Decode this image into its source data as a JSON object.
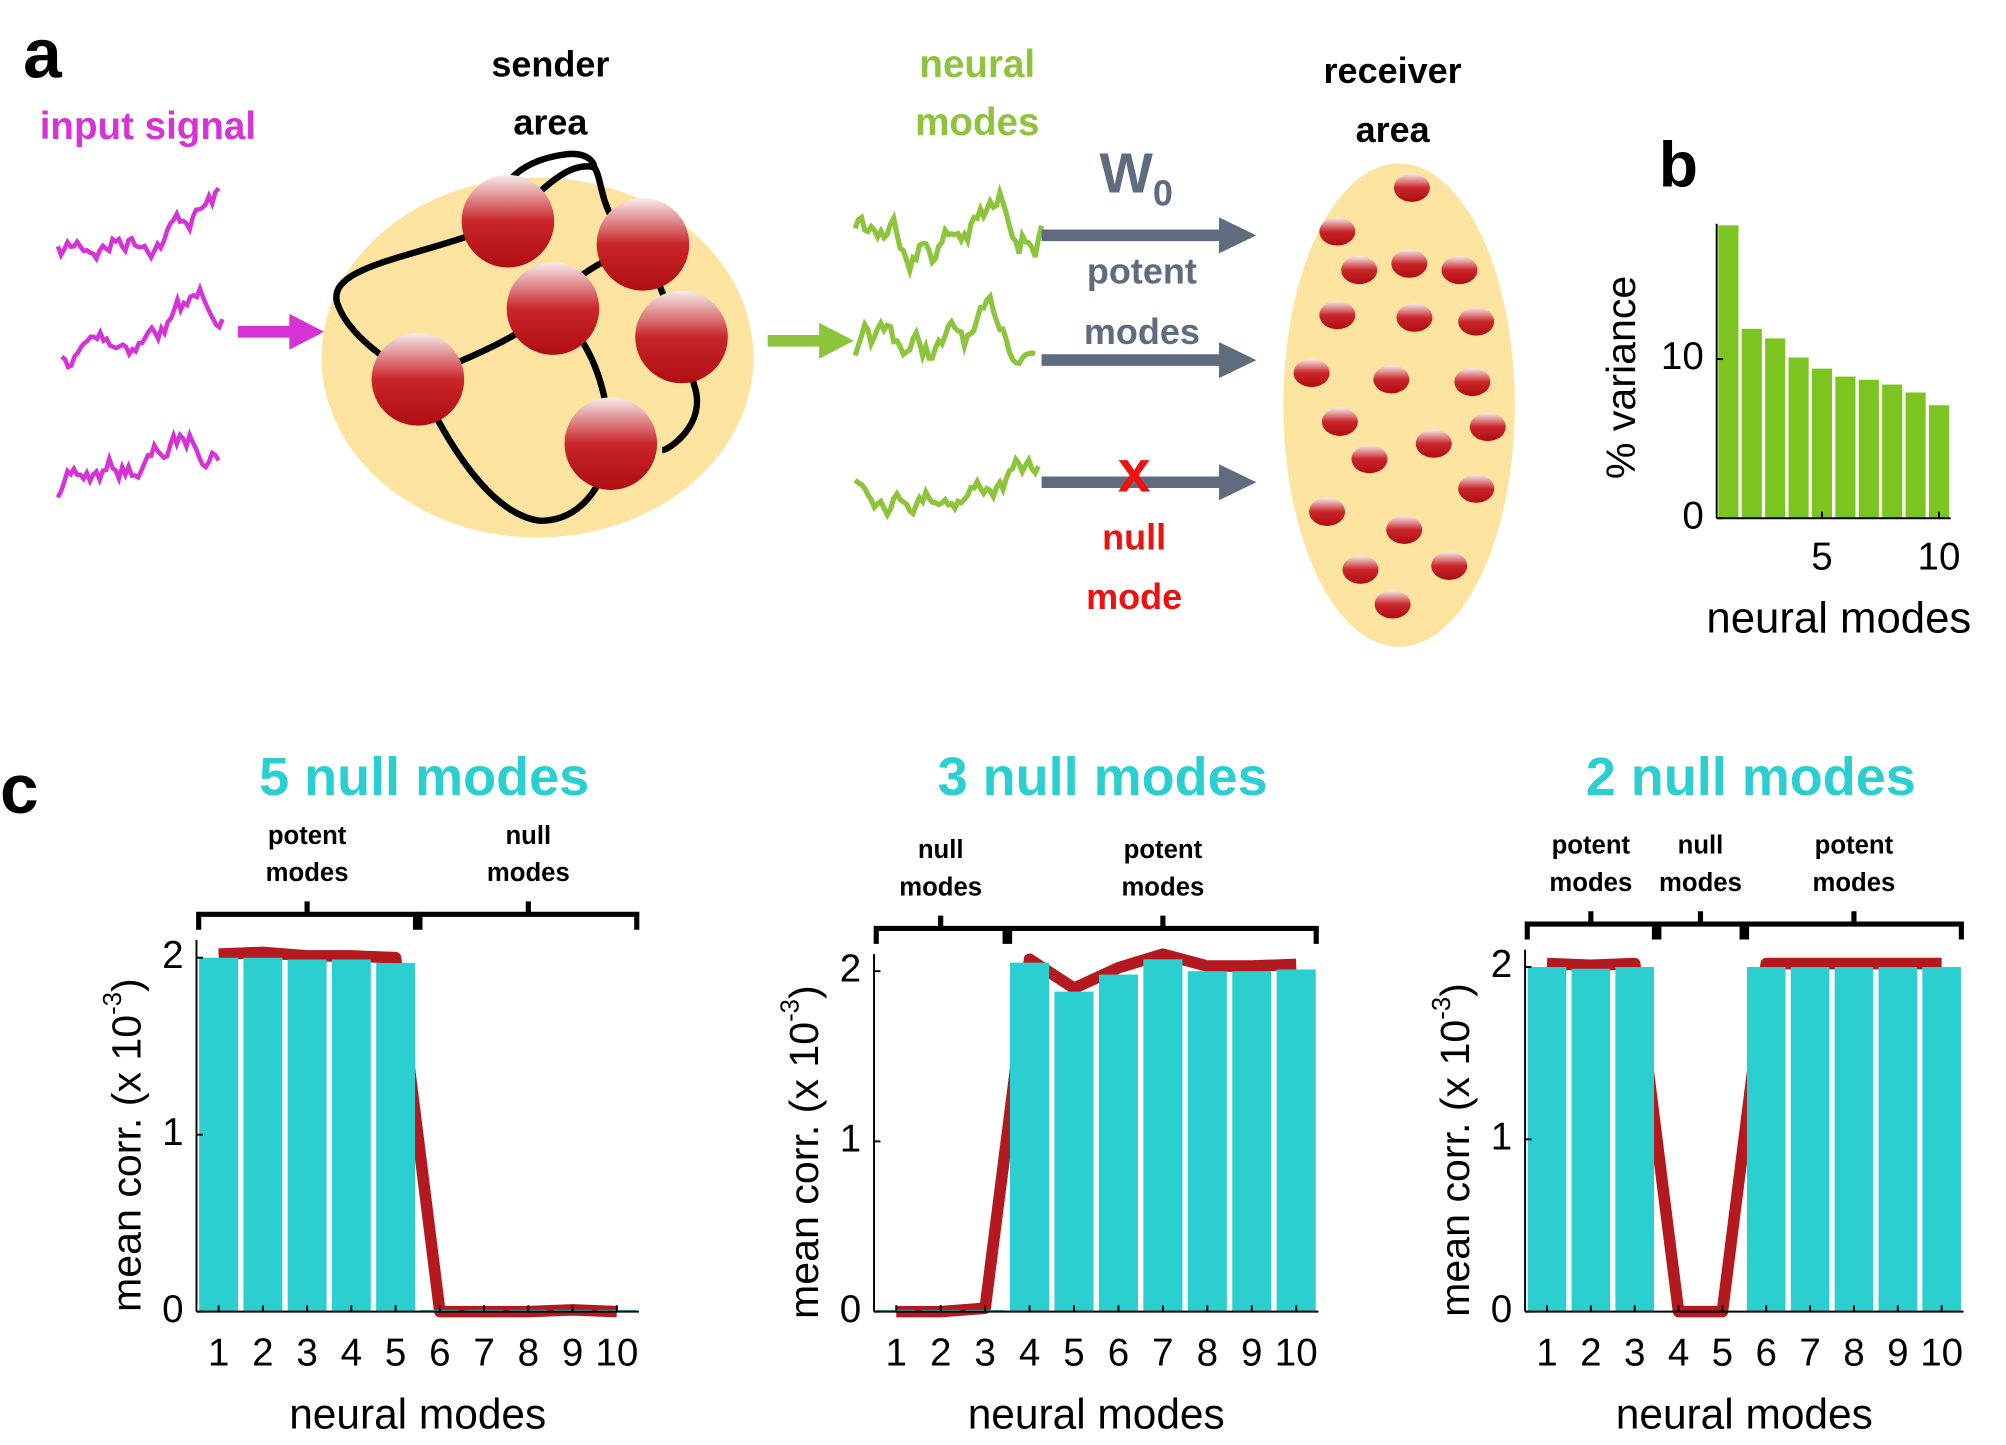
{
  "figure": {
    "panel_a": "a",
    "panel_b": "b",
    "panel_c": "c"
  },
  "diagram": {
    "input_signal": "input signal",
    "sender_area": [
      "sender",
      "area"
    ],
    "neural_modes": [
      "neural",
      "modes"
    ],
    "weight": "W",
    "weight_sub": "0",
    "potent_modes": [
      "potent",
      "modes"
    ],
    "null_mark": "x",
    "null_mode": [
      "null",
      "mode"
    ],
    "receiver_area": [
      "receiver",
      "area"
    ]
  },
  "chart_data": [
    {
      "type": "bar",
      "x": [
        1,
        2,
        3,
        4,
        5,
        6,
        7,
        8,
        9,
        10
      ],
      "values": [
        18.4,
        11.9,
        11.3,
        10.1,
        9.4,
        8.9,
        8.7,
        8.4,
        7.9,
        7.1
      ],
      "color": "#7cc41f",
      "xlim": [
        0.5,
        10.5
      ],
      "xticks": [
        5,
        10
      ],
      "ylim": [
        0,
        18.5
      ],
      "yticks": [
        0,
        10
      ],
      "xlabel": "neural modes",
      "ylabel": "% variance"
    },
    {
      "type": "bar",
      "title": "5 null modes",
      "categories": [
        "1",
        "2",
        "3",
        "4",
        "5",
        "6",
        "7",
        "8",
        "9",
        "10"
      ],
      "values": [
        2.0,
        2.0,
        1.99,
        1.99,
        1.97,
        0.01,
        0.01,
        0.01,
        0.01,
        0.01
      ],
      "color": "#2ccfd0",
      "line_values": [
        2.02,
        2.03,
        2.01,
        2.01,
        2.0,
        0,
        0,
        0,
        0.01,
        0.0
      ],
      "line_color": "#b3191f",
      "ylim": [
        0,
        2.1
      ],
      "yticks": [
        0,
        1,
        2
      ],
      "xlabel": "neural modes",
      "ylabel": "mean corr. (x 10",
      "ylabel_sup": "-3",
      "ylabel_end": ")",
      "groups": [
        {
          "label": [
            "potent",
            "modes"
          ],
          "start": 1,
          "end": 5
        },
        {
          "label": [
            "null",
            "modes"
          ],
          "start": 6,
          "end": 10
        }
      ]
    },
    {
      "type": "bar",
      "title": "3 null modes",
      "categories": [
        "1",
        "2",
        "3",
        "4",
        "5",
        "6",
        "7",
        "8",
        "9",
        "10"
      ],
      "values": [
        0.01,
        0.01,
        0.01,
        2.05,
        1.88,
        1.98,
        2.07,
        2.0,
        2.0,
        2.01
      ],
      "color": "#2ccfd0",
      "line_values": [
        0.0,
        0.0,
        0.02,
        2.07,
        1.9,
        2.02,
        2.1,
        2.03,
        2.03,
        2.04
      ],
      "line_color": "#b3191f",
      "ylim": [
        0,
        2.1
      ],
      "yticks": [
        0,
        1,
        2
      ],
      "xlabel": "neural modes",
      "ylabel": "mean corr. (x 10",
      "ylabel_sup": "-3",
      "ylabel_end": ")",
      "groups": [
        {
          "label": [
            "null",
            "modes"
          ],
          "start": 1,
          "end": 3
        },
        {
          "label": [
            "potent",
            "modes"
          ],
          "start": 4,
          "end": 10
        }
      ]
    },
    {
      "type": "bar",
      "title": "2 null modes",
      "categories": [
        "1",
        "2",
        "3",
        "4",
        "5",
        "6",
        "7",
        "8",
        "9",
        "10"
      ],
      "values": [
        2.0,
        1.99,
        2.0,
        0.0,
        0.0,
        2.0,
        2.0,
        2.0,
        2.0,
        2.0
      ],
      "color": "#2ccfd0",
      "line_values": [
        2.02,
        2.01,
        2.02,
        0,
        0,
        2.02,
        2.02,
        2.02,
        2.02,
        2.02
      ],
      "line_color": "#b3191f",
      "ylim": [
        0,
        2.1
      ],
      "yticks": [
        0,
        1,
        2
      ],
      "xlabel": "neural modes",
      "ylabel": "mean corr. (x 10",
      "ylabel_sup": "-3",
      "ylabel_end": ")",
      "groups": [
        {
          "label": [
            "potent",
            "modes"
          ],
          "start": 1,
          "end": 3
        },
        {
          "label": [
            "null",
            "modes"
          ],
          "start": 4,
          "end": 5
        },
        {
          "label": [
            "potent",
            "modes"
          ],
          "start": 6,
          "end": 10
        }
      ]
    }
  ]
}
